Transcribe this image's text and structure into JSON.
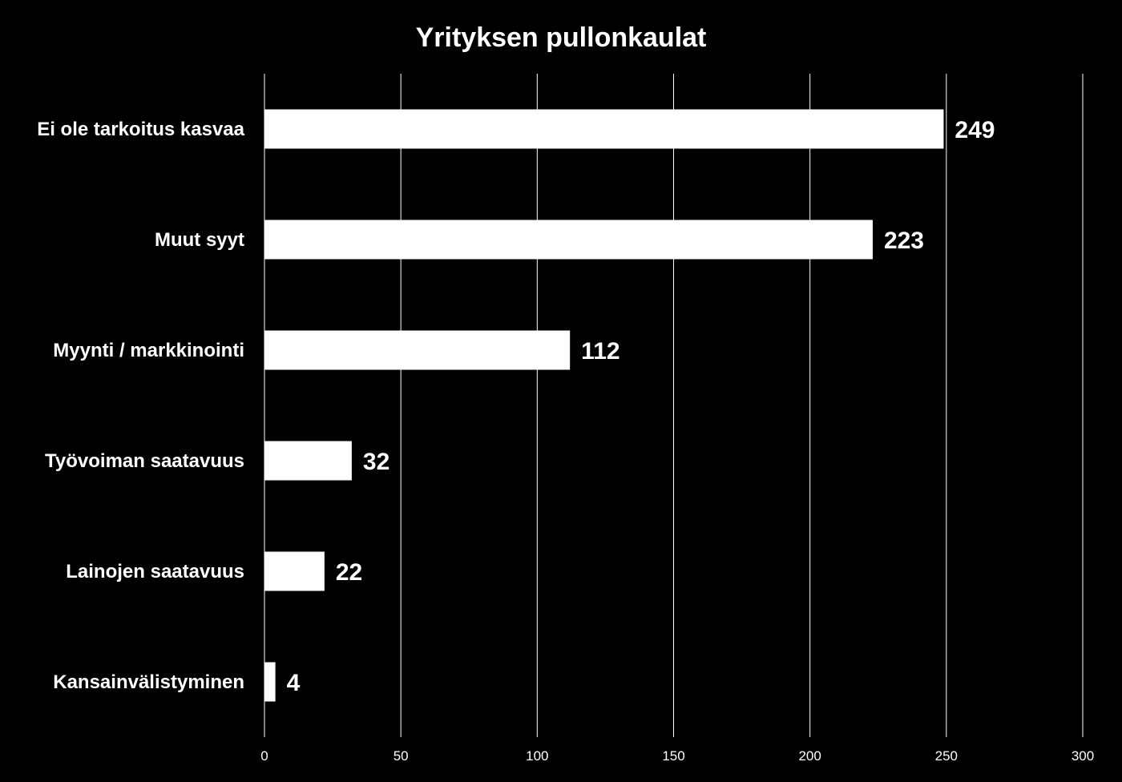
{
  "chart_data": {
    "type": "bar",
    "orientation": "horizontal",
    "title": "Yrityksen pullonkaulat",
    "xlabel": "",
    "ylabel": "",
    "categories": [
      "Ei ole tarkoitus kasvaa",
      "Muut syyt",
      "Myynti / markkinointi",
      "Työvoiman saatavuus",
      "Lainojen saatavuus",
      "Kansainvälistyminen"
    ],
    "values": [
      249,
      223,
      112,
      32,
      22,
      4
    ],
    "xlim": [
      0,
      300
    ],
    "x_ticks": [
      "0",
      "50",
      "100",
      "150",
      "200",
      "250",
      "300"
    ],
    "grid": "vertical",
    "legend": "none",
    "colors": {
      "background": "#000000",
      "bar": "#ffffff",
      "text": "#ffffff",
      "grid": "#ffffff"
    }
  }
}
